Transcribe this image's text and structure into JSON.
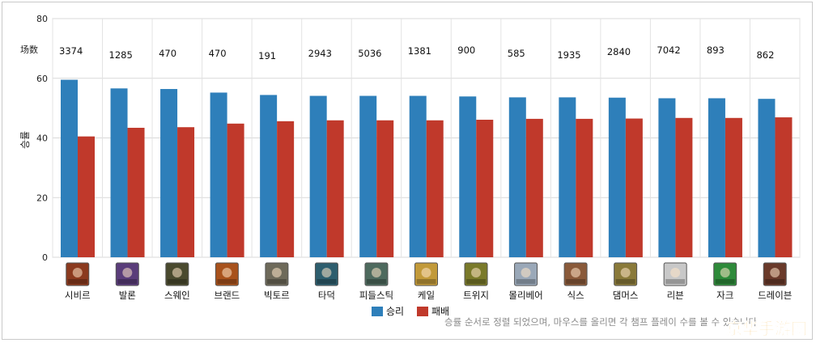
{
  "chart_data": {
    "type": "bar",
    "ylabel": "승률",
    "ylim": [
      0,
      80
    ],
    "yticks": [
      0,
      20,
      40,
      60,
      80
    ],
    "games_label": "场数",
    "categories": [
      "시비르",
      "발론",
      "스웨인",
      "브랜드",
      "빅토르",
      "타덕",
      "피들스틱",
      "케일",
      "트위지",
      "몰리베어",
      "식스",
      "댐머스",
      "리븐",
      "자크",
      "드레이븐"
    ],
    "games": [
      "3374",
      "1285",
      "470",
      "470",
      "191",
      "2943",
      "5036",
      "1381",
      "900",
      "585",
      "1935",
      "2840",
      "7042",
      "893",
      "862"
    ],
    "series": [
      {
        "name": "승리",
        "color": "#2e7fba",
        "values": [
          59.5,
          56.6,
          56.4,
          55.2,
          54.4,
          54.1,
          54.1,
          54.1,
          53.9,
          53.6,
          53.6,
          53.5,
          53.3,
          53.3,
          53.1
        ]
      },
      {
        "name": "패배",
        "color": "#c0392b",
        "values": [
          40.5,
          43.4,
          43.6,
          44.8,
          45.6,
          45.9,
          45.9,
          45.9,
          46.1,
          46.4,
          46.4,
          46.5,
          46.7,
          46.7,
          46.9
        ]
      }
    ],
    "grid": true,
    "legend": "bottom-center"
  },
  "footnote": "승률 순서로 정렬 되었으며, 마우스를 올리면 각 챔프 플레이 수를 볼 수 있습니다",
  "watermark": "京华手游网",
  "icon_colors": [
    "#8b3a1e",
    "#5a3d7a",
    "#4a4a2e",
    "#a8521c",
    "#6e6a5a",
    "#2e5e6e",
    "#4e6a5e",
    "#c29a3a",
    "#7a7a2a",
    "#9aa8b8",
    "#8a5a3a",
    "#8a7a3a",
    "#c8c8c8",
    "#2e8a3a",
    "#6a3a2a"
  ]
}
